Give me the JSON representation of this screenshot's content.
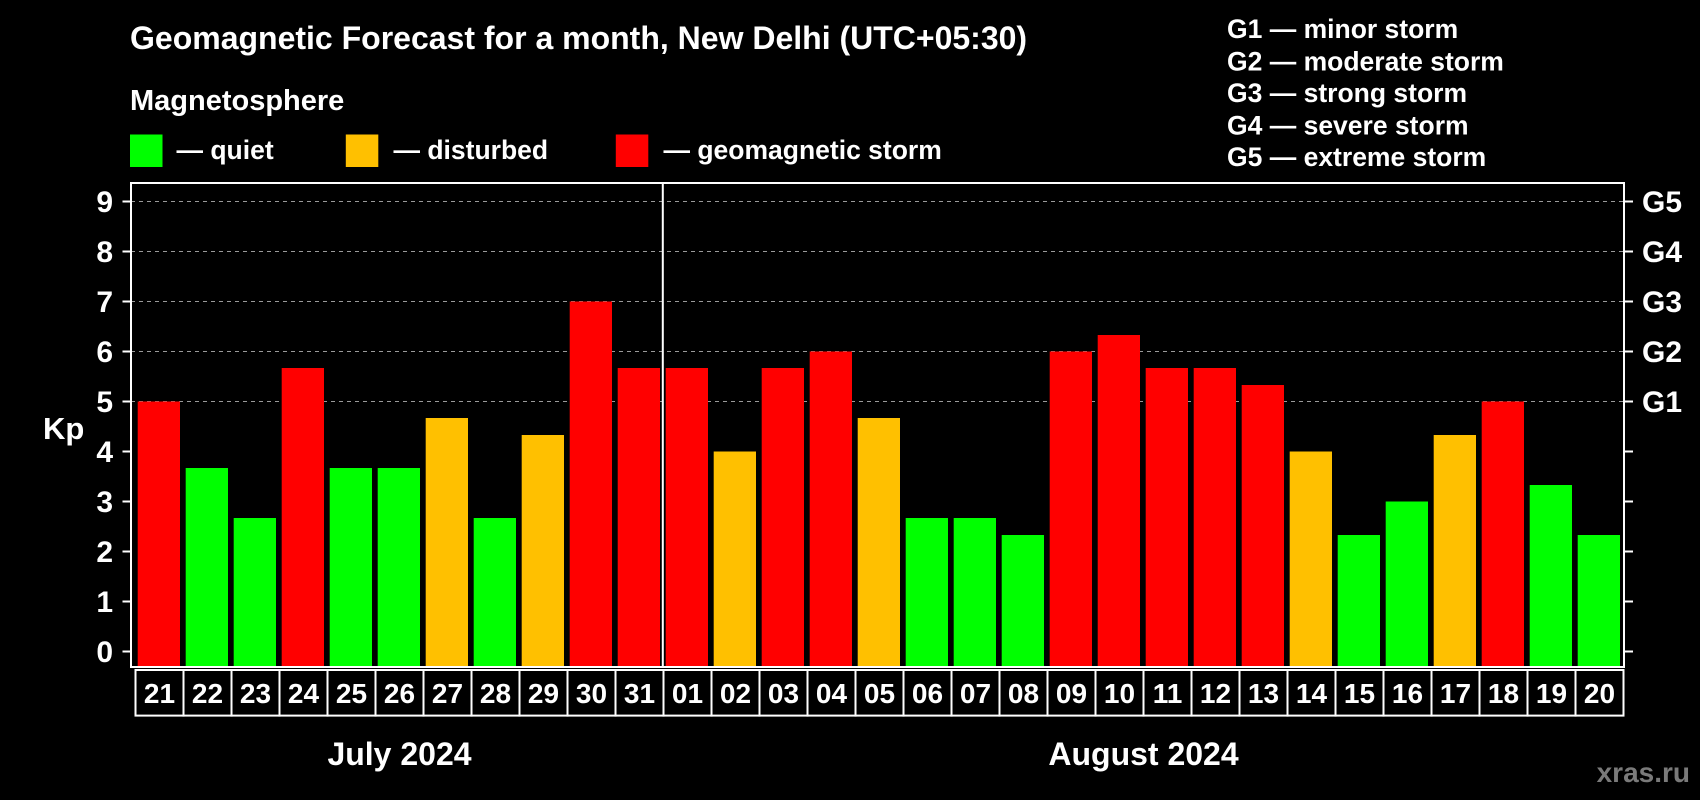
{
  "chart_data": {
    "type": "bar",
    "title": "Geomagnetic Forecast for a month, New Delhi (UTC+05:30)",
    "legend": {
      "heading": "Magnetosphere",
      "items": [
        {
          "label": "— quiet",
          "color": "#00ff00"
        },
        {
          "label": "— disturbed",
          "color": "#ffc000"
        },
        {
          "label": "— geomagnetic storm",
          "color": "#ff0000"
        }
      ]
    },
    "storm_scale": [
      "G1 — minor storm",
      "G2 — moderate storm",
      "G3 — strong storm",
      "G4 — severe storm",
      "G5 — extreme storm"
    ],
    "ylabel": "Kp",
    "ylim": [
      0,
      9
    ],
    "yticks": [
      0,
      1,
      2,
      3,
      4,
      5,
      6,
      7,
      8,
      9
    ],
    "y2ticks": [
      {
        "value": 5,
        "label": "G1"
      },
      {
        "value": 6,
        "label": "G2"
      },
      {
        "value": 7,
        "label": "G3"
      },
      {
        "value": 8,
        "label": "G4"
      },
      {
        "value": 9,
        "label": "G5"
      }
    ],
    "gridlines": [
      5,
      6,
      7,
      8,
      9
    ],
    "months": [
      {
        "label": "July 2024",
        "days": 11
      },
      {
        "label": "August 2024",
        "days": 20
      }
    ],
    "categories": [
      "21",
      "22",
      "23",
      "24",
      "25",
      "26",
      "27",
      "28",
      "29",
      "30",
      "31",
      "01",
      "02",
      "03",
      "04",
      "05",
      "06",
      "07",
      "08",
      "09",
      "10",
      "11",
      "12",
      "13",
      "14",
      "15",
      "16",
      "17",
      "18",
      "19",
      "20"
    ],
    "values": [
      5,
      3.67,
      2.67,
      5.67,
      3.67,
      3.67,
      4.67,
      2.67,
      4.33,
      7,
      5.67,
      5.67,
      4,
      5.67,
      6,
      4.67,
      2.67,
      2.67,
      2.33,
      6,
      6.33,
      5.67,
      5.67,
      5.33,
      4,
      2.33,
      3,
      4.33,
      5,
      3.33,
      2.33
    ],
    "colors": [
      "#ff0000",
      "#00ff00",
      "#00ff00",
      "#ff0000",
      "#00ff00",
      "#00ff00",
      "#ffc000",
      "#00ff00",
      "#ffc000",
      "#ff0000",
      "#ff0000",
      "#ff0000",
      "#ffc000",
      "#ff0000",
      "#ff0000",
      "#ffc000",
      "#00ff00",
      "#00ff00",
      "#00ff00",
      "#ff0000",
      "#ff0000",
      "#ff0000",
      "#ff0000",
      "#ff0000",
      "#ffc000",
      "#00ff00",
      "#00ff00",
      "#ffc000",
      "#ff0000",
      "#00ff00",
      "#00ff00"
    ]
  },
  "watermark": "xras.ru"
}
